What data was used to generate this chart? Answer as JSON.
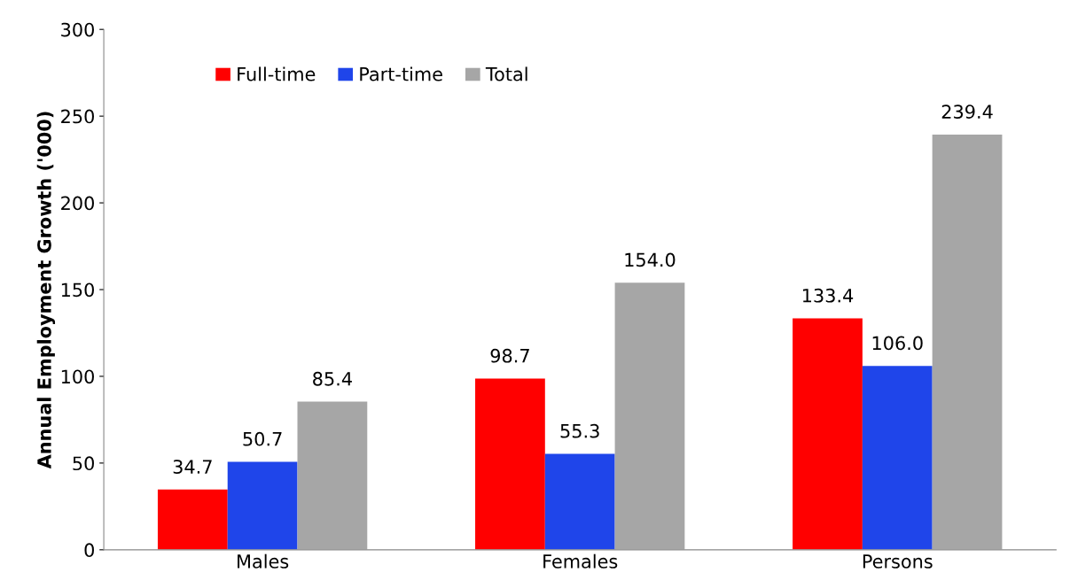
{
  "chart_data": {
    "type": "bar",
    "ylabel": "Annual Employment Growth ('000)",
    "categories": [
      "Males",
      "Females",
      "Persons"
    ],
    "series": [
      {
        "name": "Full-time",
        "color": "#ff0000",
        "values": [
          34.7,
          98.7,
          133.4
        ]
      },
      {
        "name": "Part-time",
        "color": "#1f45ea",
        "values": [
          50.7,
          55.3,
          106.0
        ]
      },
      {
        "name": "Total",
        "color": "#a6a6a6",
        "values": [
          85.4,
          154.0,
          239.4
        ]
      }
    ],
    "value_labels": [
      [
        "34.7",
        "98.7",
        "133.4"
      ],
      [
        "50.7",
        "55.3",
        "106.0"
      ],
      [
        "85.4",
        "154.0",
        "239.4"
      ]
    ],
    "ylim": [
      0,
      300
    ],
    "yticks": [
      0,
      50,
      100,
      150,
      200,
      250,
      300
    ],
    "grid": false,
    "legend": "top left"
  }
}
